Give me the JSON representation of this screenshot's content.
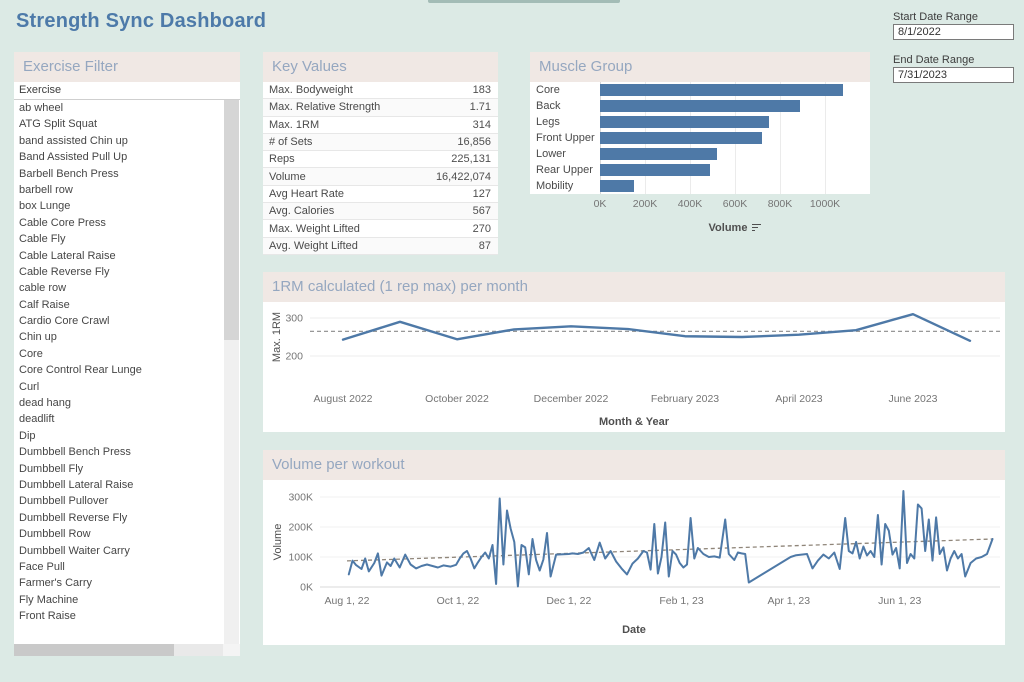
{
  "page": {
    "title": "Strength Sync Dashboard"
  },
  "date_filters": {
    "start": {
      "label": "Start Date Range",
      "value": "8/1/2022"
    },
    "end": {
      "label": "End Date Range",
      "value": "7/31/2023"
    }
  },
  "exercise_filter": {
    "title": "Exercise Filter",
    "field_header": "Exercise",
    "items": [
      "ab wheel",
      "ATG Split Squat",
      "band assisted Chin up",
      "Band Assisted Pull Up",
      "Barbell Bench Press",
      "barbell row",
      "box Lunge",
      "Cable Core Press",
      "Cable Fly",
      "Cable Lateral Raise",
      "Cable Reverse Fly",
      "cable row",
      "Calf Raise",
      "Cardio Core Crawl",
      "Chin up",
      "Core",
      "Core Control Rear Lunge",
      "Curl",
      "dead hang",
      "deadlift",
      "Dip",
      "Dumbbell Bench Press",
      "Dumbbell Fly",
      "Dumbbell Lateral Raise",
      "Dumbbell Pullover",
      "Dumbbell Reverse Fly",
      "Dumbbell Row",
      "Dumbbell Waiter Carry",
      "Face Pull",
      "Farmer's Carry",
      "Fly Machine",
      "Front Raise"
    ]
  },
  "key_values": {
    "title": "Key Values",
    "rows": [
      {
        "label": "Max. Bodyweight",
        "value": "183"
      },
      {
        "label": "Max. Relative Strength",
        "value": "1.71"
      },
      {
        "label": "Max. 1RM",
        "value": "314"
      },
      {
        "label": "# of Sets",
        "value": "16,856"
      },
      {
        "label": "Reps",
        "value": "225,131"
      },
      {
        "label": "Volume",
        "value": "16,422,074"
      },
      {
        "label": "Avg Heart Rate",
        "value": "127"
      },
      {
        "label": "Avg. Calories",
        "value": "567"
      },
      {
        "label": "Max. Weight Lifted",
        "value": "270"
      },
      {
        "label": "Avg. Weight Lifted",
        "value": "87"
      }
    ]
  },
  "colors": {
    "accent": "#4e79a7",
    "background": "#dceae5",
    "header_band": "#f0e8e4",
    "title_text": "#4d7aa9",
    "section_title": "#95a7c0",
    "reference_line": "#8a8a8a",
    "trend_line": "#8f8579"
  },
  "chart_data": [
    {
      "id": "muscle_group",
      "type": "bar",
      "orientation": "horizontal",
      "title": "Muscle Group",
      "categories": [
        "Core",
        "Back",
        "Legs",
        "Front Upper",
        "Lower",
        "Rear Upper",
        "Mobility"
      ],
      "values": [
        1080000,
        890000,
        750000,
        720000,
        520000,
        490000,
        150000
      ],
      "xlabel": "Volume",
      "sort": "descending",
      "x_ticks": [
        "0K",
        "200K",
        "400K",
        "600K",
        "800K",
        "1000K"
      ],
      "x_tick_values": [
        0,
        200000,
        400000,
        600000,
        800000,
        1000000
      ],
      "xlim": [
        0,
        1200000
      ],
      "grid": true,
      "bar_color": "#4e79a7"
    },
    {
      "id": "rm_per_month",
      "type": "line",
      "title": "1RM calculated (1 rep max) per month",
      "x": [
        "August 2022",
        "September 2022",
        "October 2022",
        "November 2022",
        "December 2022",
        "January 2023",
        "February 2023",
        "March 2023",
        "April 2023",
        "May 2023",
        "June 2023",
        "July 2023"
      ],
      "values": [
        243,
        290,
        244,
        270,
        278,
        271,
        252,
        250,
        256,
        268,
        310,
        240
      ],
      "x_tick_labels_shown": [
        "August 2022",
        "October 2022",
        "December 2022",
        "February 2023",
        "April 2023",
        "June 2023"
      ],
      "x_tick_indices": [
        0,
        2,
        4,
        6,
        8,
        10
      ],
      "xlabel": "Month & Year",
      "ylabel": "Max. 1RM",
      "y_ticks": [
        300,
        200
      ],
      "ylim": [
        130,
        320
      ],
      "grid": true,
      "reference_line": 265,
      "reference_line_style": "dashed",
      "line_color": "#4e79a7"
    },
    {
      "id": "volume_per_workout",
      "type": "line",
      "title": "Volume per workout",
      "xlabel": "Date",
      "ylabel": "Volume",
      "y_ticks": [
        "300K",
        "200K",
        "100K",
        "0K"
      ],
      "y_tick_values": [
        300000,
        200000,
        100000,
        0
      ],
      "ylim": [
        0,
        330000
      ],
      "x_tick_labels": [
        "Aug 1, 22",
        "Oct 1, 22",
        "Dec 1, 22",
        "Feb 1, 23",
        "Apr 1, 23",
        "Jun 1, 23"
      ],
      "x_tick_days": [
        0,
        61,
        122,
        184,
        243,
        304
      ],
      "x_days": [
        1,
        3,
        5,
        8,
        10,
        12,
        15,
        17,
        19,
        22,
        24,
        26,
        29,
        32,
        35,
        38,
        41,
        44,
        47,
        50,
        53,
        57,
        60,
        62,
        64,
        66,
        68,
        70,
        72,
        74,
        76,
        78,
        80,
        82,
        84,
        86,
        88,
        90,
        92,
        94,
        96,
        98,
        100,
        102,
        104,
        106,
        108,
        110,
        112,
        115,
        122,
        124,
        127,
        130,
        133,
        136,
        139,
        142,
        145,
        148,
        151,
        154,
        157,
        160,
        163,
        165,
        167,
        169,
        171,
        173,
        175,
        177,
        179,
        181,
        183,
        185,
        187,
        189,
        191,
        193,
        196,
        199,
        202,
        205,
        208,
        210,
        213,
        215,
        217,
        219,
        221,
        244,
        247,
        250,
        253,
        256,
        259,
        262,
        265,
        268,
        271,
        274,
        276,
        278,
        280,
        282,
        284,
        286,
        288,
        290,
        292,
        294,
        296,
        298,
        300,
        302,
        304,
        306,
        308,
        310,
        312,
        314,
        316,
        318,
        320,
        322,
        324,
        326,
        328,
        330,
        332,
        334,
        336,
        338,
        340,
        343,
        346,
        349,
        352,
        355
      ],
      "values": [
        42000,
        88000,
        73000,
        60000,
        95000,
        52000,
        80000,
        112000,
        38000,
        82000,
        70000,
        95000,
        65000,
        108000,
        75000,
        62000,
        70000,
        75000,
        70000,
        65000,
        72000,
        68000,
        74000,
        95000,
        112000,
        120000,
        95000,
        62000,
        82000,
        100000,
        115000,
        95000,
        140000,
        10000,
        295000,
        75000,
        255000,
        195000,
        150000,
        2000,
        140000,
        132000,
        42000,
        160000,
        90000,
        55000,
        92000,
        180000,
        35000,
        108000,
        110000,
        112000,
        110000,
        115000,
        130000,
        90000,
        148000,
        95000,
        120000,
        85000,
        62000,
        42000,
        78000,
        95000,
        120000,
        115000,
        58000,
        210000,
        45000,
        100000,
        215000,
        35000,
        120000,
        108000,
        80000,
        65000,
        75000,
        230000,
        95000,
        130000,
        110000,
        100000,
        102000,
        98000,
        225000,
        110000,
        90000,
        115000,
        112000,
        110000,
        15000,
        100000,
        106000,
        108000,
        110000,
        62000,
        88000,
        108000,
        95000,
        115000,
        60000,
        230000,
        120000,
        112000,
        150000,
        95000,
        135000,
        105000,
        120000,
        100000,
        240000,
        75000,
        210000,
        188000,
        108000,
        130000,
        62000,
        320000,
        80000,
        110000,
        95000,
        275000,
        262000,
        120000,
        225000,
        88000,
        232000,
        110000,
        132000,
        55000,
        95000,
        120000,
        95000,
        110000,
        35000,
        80000,
        95000,
        100000,
        110000,
        160000
      ],
      "trend_line": {
        "start": 87000,
        "end": 160000,
        "style": "dashed"
      },
      "line_color": "#4e79a7"
    }
  ]
}
